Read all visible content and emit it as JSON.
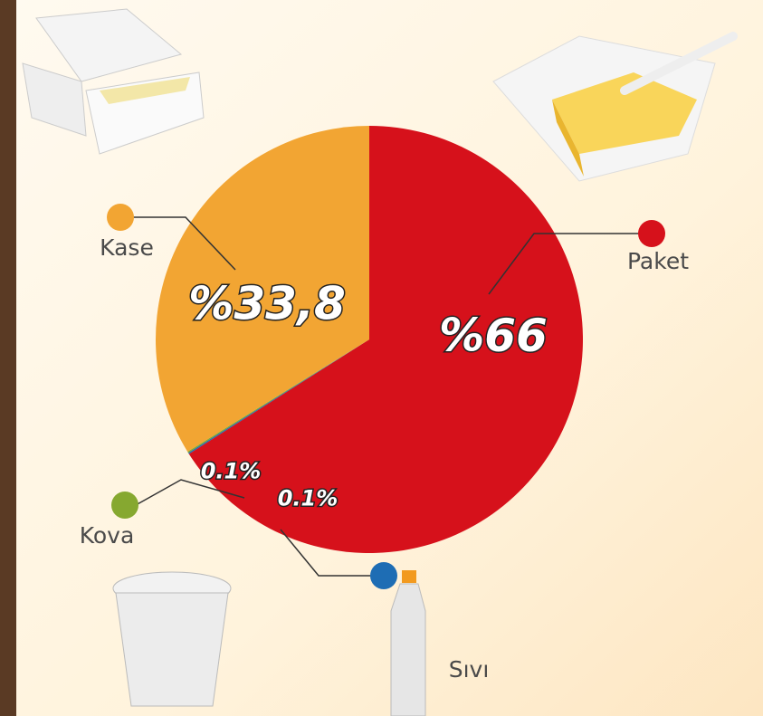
{
  "chart_data": {
    "type": "pie",
    "categories": [
      "Paket",
      "Sıvı",
      "Kova",
      "Kase"
    ],
    "values": [
      66,
      0.1,
      0.1,
      33.8
    ],
    "value_labels": [
      "%66",
      "0.1%",
      "0.1%",
      "%33,8"
    ],
    "colors": [
      "#d6111b",
      "#1e6db4",
      "#86a830",
      "#f2a533"
    ]
  }
}
